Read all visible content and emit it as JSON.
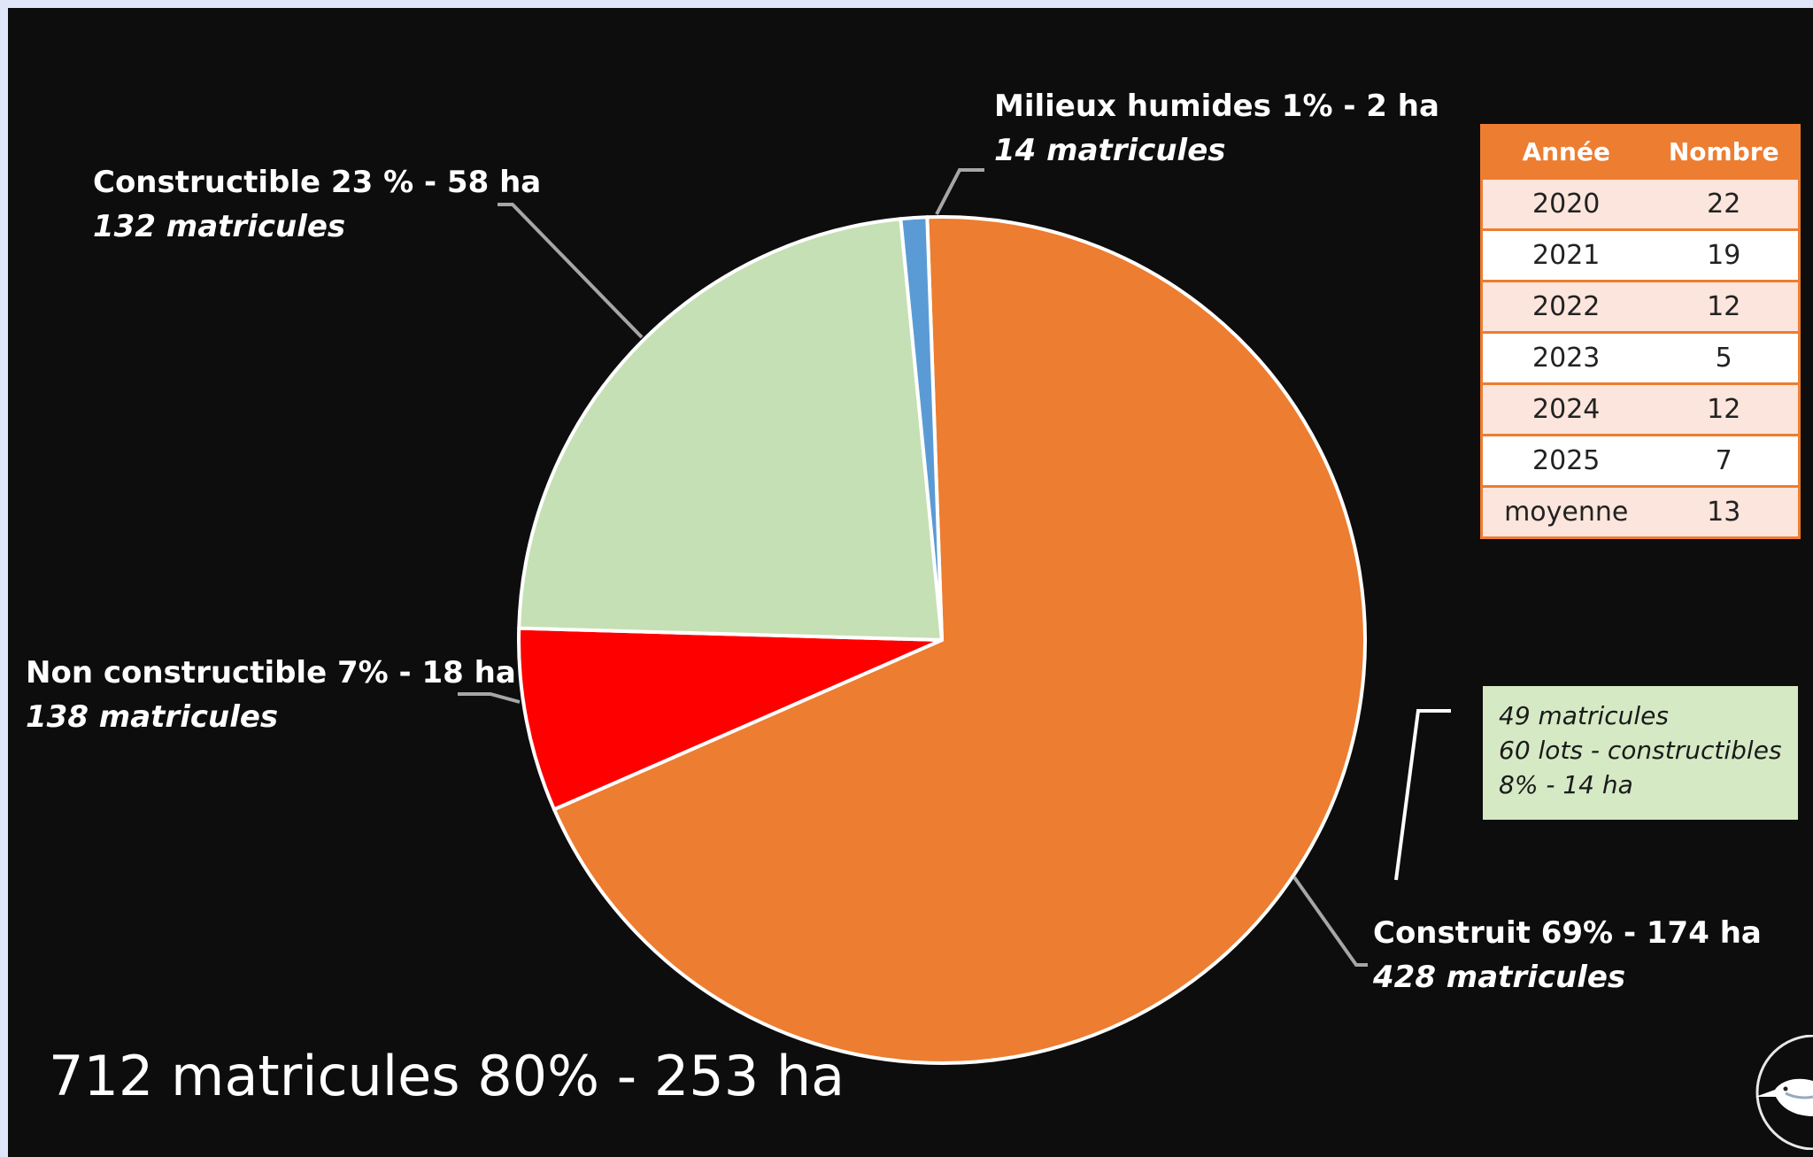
{
  "chart_data": {
    "type": "pie",
    "start_angle_deg": -2,
    "direction": "clockwise",
    "slices": [
      {
        "name": "Construit",
        "percent": 69,
        "hectares": 174,
        "matricules": 428,
        "color": "#ed7d31"
      },
      {
        "name": "Non constructible",
        "percent": 7,
        "hectares": 18,
        "matricules": 138,
        "color": "#ff0000"
      },
      {
        "name": "Constructible",
        "percent": 23,
        "hectares": 58,
        "matricules": 132,
        "color": "#c5e0b4"
      },
      {
        "name": "Milieux humides",
        "percent": 1,
        "hectares": 2,
        "matricules": 14,
        "color": "#5b9bd5"
      }
    ],
    "labels": {
      "milieux": {
        "line1": "Milieux humides  1% - 2 ha",
        "line2": "14 matricules"
      },
      "constructible": {
        "line1": "Constructible  23 % - 58 ha",
        "line2": "132 matricules"
      },
      "non_constructible": {
        "line1": "Non constructible 7% - 18 ha",
        "line2": "138 matricules"
      },
      "construit": {
        "line1": "Construit  69% - 174 ha",
        "line2": "428 matricules"
      }
    },
    "summary": "712 matricules  80% - 253 ha"
  },
  "table": {
    "headers": [
      "Année",
      "Nombre"
    ],
    "rows": [
      [
        "2020",
        "22"
      ],
      [
        "2021",
        "19"
      ],
      [
        "2022",
        "12"
      ],
      [
        "2023",
        "5"
      ],
      [
        "2024",
        "12"
      ],
      [
        "2025",
        "7"
      ],
      [
        "moyenne",
        "13"
      ]
    ]
  },
  "note": {
    "line1": "49 matricules",
    "line2": "60 lots - constructibles",
    "line3": "8% - 14 ha"
  },
  "logo": {
    "icon": "bird-logo-icon"
  }
}
